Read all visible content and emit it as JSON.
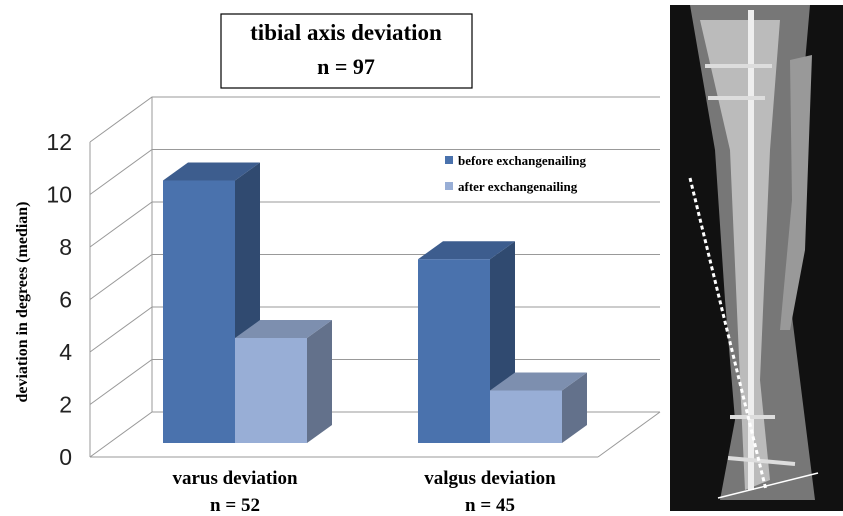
{
  "chart_data": {
    "type": "bar3d",
    "title": "tibial axis deviation",
    "subtitle": "n = 97",
    "y_label": "deviation in degrees (median)",
    "categories": [
      "varus deviation",
      "valgus deviation"
    ],
    "category_notes": [
      "n = 52",
      "n = 45"
    ],
    "series": [
      {
        "name": "before exchangenailing",
        "color": "#4a72ad",
        "values": [
          10,
          7
        ]
      },
      {
        "name": "after exchangenailing",
        "color": "#98aed6",
        "values": [
          4,
          2
        ]
      }
    ],
    "ylim": [
      0,
      12
    ],
    "yticks": [
      0,
      2,
      4,
      6,
      8,
      10,
      12
    ],
    "grid": true
  }
}
